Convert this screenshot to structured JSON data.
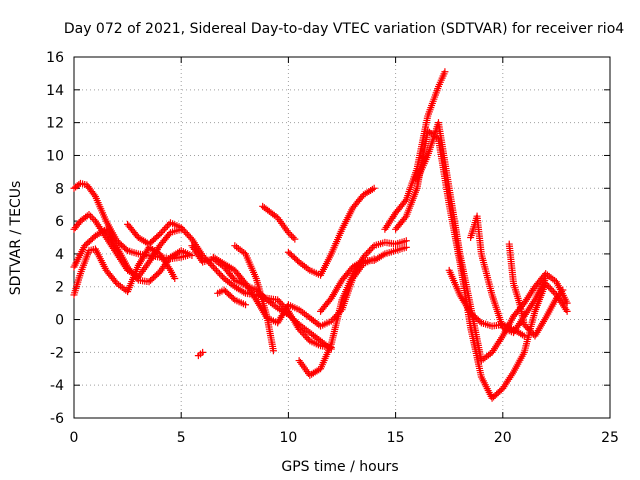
{
  "chart_data": {
    "type": "scatter",
    "title": "Day 072 of 2021, Sidereal Day-to-day VTEC variation (SDTVAR) for receiver rio4",
    "xlabel": "GPS time / hours",
    "ylabel": "SDTVAR / TECUs",
    "xlim": [
      0,
      25
    ],
    "ylim": [
      -6,
      16
    ],
    "xticks": [
      0,
      5,
      10,
      15,
      20,
      25
    ],
    "yticks": [
      -6,
      -4,
      -2,
      0,
      2,
      4,
      6,
      8,
      10,
      12,
      14,
      16
    ],
    "grid": true,
    "marker": "+",
    "color": "#ff0000",
    "series": [
      {
        "x": [
          0.0,
          0.3,
          0.6,
          1.0,
          1.5,
          2.0,
          2.5,
          3.0,
          3.5,
          4.0,
          4.5,
          5.0,
          5.3
        ],
        "y": [
          8.0,
          8.3,
          8.2,
          7.5,
          6.0,
          4.8,
          4.2,
          4.0,
          3.9,
          3.8,
          3.7,
          3.8,
          3.9
        ]
      },
      {
        "x": [
          0.0,
          0.3,
          0.7,
          1.0,
          1.5,
          2.0,
          2.5,
          3.0,
          3.5,
          4.0,
          4.5,
          5.0
        ],
        "y": [
          5.5,
          6.0,
          6.4,
          6.0,
          5.0,
          4.0,
          3.0,
          2.6,
          3.5,
          4.5,
          5.3,
          5.5
        ]
      },
      {
        "x": [
          0.0,
          0.5,
          1.0,
          1.5,
          2.0,
          2.5,
          3.0,
          3.5,
          4.0,
          4.5,
          5.0,
          5.5
        ],
        "y": [
          3.2,
          4.5,
          5.1,
          5.5,
          4.4,
          3.2,
          2.4,
          2.3,
          2.9,
          3.8,
          4.2,
          3.9
        ]
      },
      {
        "x": [
          0.0,
          0.3,
          0.7,
          1.0,
          1.5,
          2.0,
          2.5,
          3.0,
          3.5,
          4.0,
          4.5,
          4.7
        ],
        "y": [
          1.5,
          2.8,
          4.2,
          4.3,
          3.0,
          2.2,
          1.7,
          3.3,
          4.4,
          4.0,
          3.0,
          2.5
        ]
      },
      {
        "x": [
          2.5,
          3.0,
          3.5,
          4.0,
          4.5,
          5.0,
          5.5,
          6.0,
          6.5,
          7.0,
          7.5,
          8.0,
          8.5,
          9.0,
          9.5,
          10.0,
          10.5,
          11.0,
          11.5,
          12.0
        ],
        "y": [
          5.8,
          5.0,
          4.6,
          5.2,
          5.9,
          5.6,
          4.9,
          3.9,
          3.2,
          2.5,
          2.0,
          1.6,
          1.5,
          1.3,
          1.2,
          0.5,
          -0.6,
          -1.3,
          -1.6,
          -1.7
        ]
      },
      {
        "x": [
          5.5,
          6.0,
          6.5,
          7.0,
          7.5,
          8.0,
          8.5,
          9.0,
          9.5,
          10.0,
          10.5,
          11.0,
          11.5,
          12.0
        ],
        "y": [
          4.5,
          3.5,
          3.7,
          3.2,
          2.4,
          2.1,
          1.8,
          1.2,
          0.7,
          0.3,
          -0.3,
          -0.8,
          -1.3,
          -1.8
        ]
      },
      {
        "x": [
          6.5,
          7.0,
          7.5,
          8.0,
          8.5,
          9.0,
          9.5,
          10.0,
          10.5,
          11.0,
          11.5,
          12.0,
          12.5,
          13.0,
          13.5,
          14.0
        ],
        "y": [
          3.8,
          3.4,
          3.0,
          2.2,
          1.2,
          0.1,
          -0.2,
          0.9,
          0.6,
          0.1,
          -0.4,
          -0.1,
          0.6,
          2.5,
          3.4,
          3.7
        ]
      },
      {
        "x": [
          6.7,
          7.0,
          7.5,
          8.0
        ],
        "y": [
          1.6,
          1.8,
          1.2,
          0.9
        ]
      },
      {
        "x": [
          7.5,
          8.0,
          8.5,
          9.0,
          9.3
        ],
        "y": [
          4.5,
          4.0,
          2.5,
          0.2,
          -1.9
        ]
      },
      {
        "x": [
          5.8,
          6.0
        ],
        "y": [
          -2.2,
          -2.0
        ]
      },
      {
        "x": [
          8.8,
          9.5,
          10.0,
          10.3
        ],
        "y": [
          6.9,
          6.2,
          5.3,
          4.9
        ]
      },
      {
        "x": [
          10.0,
          10.5,
          11.0,
          11.5,
          12.0,
          12.5,
          13.0,
          13.5,
          14.0
        ],
        "y": [
          4.1,
          3.5,
          3.0,
          2.7,
          4.0,
          5.5,
          6.8,
          7.6,
          8.0
        ]
      },
      {
        "x": [
          10.5,
          11.0,
          11.5,
          12.0,
          12.5,
          13.0,
          13.5,
          14.0,
          14.5,
          15.0,
          15.5
        ],
        "y": [
          -2.5,
          -3.4,
          -3.0,
          -1.5,
          1.2,
          2.7,
          3.8,
          4.5,
          4.7,
          4.6,
          4.8
        ]
      },
      {
        "x": [
          11.5,
          12.0,
          12.5,
          13.0,
          13.5,
          14.0,
          14.5,
          15.0,
          15.5
        ],
        "y": [
          0.5,
          1.3,
          2.4,
          3.2,
          3.6,
          3.6,
          4.0,
          4.2,
          4.4
        ]
      },
      {
        "x": [
          14.5,
          15.0,
          15.5,
          16.0,
          16.5,
          17.0,
          17.3
        ],
        "y": [
          5.5,
          6.5,
          7.3,
          9.2,
          12.4,
          14.2,
          15.1
        ]
      },
      {
        "x": [
          15.0,
          15.5,
          16.0,
          16.5,
          17.0,
          17.5,
          18.0,
          18.5,
          19.0,
          19.5,
          20.0,
          20.5,
          21.0,
          21.5,
          22.0,
          22.5,
          23.0
        ],
        "y": [
          5.5,
          6.3,
          8.0,
          11.5,
          11.0,
          7.0,
          3.5,
          -0.5,
          -3.5,
          -4.8,
          -4.2,
          -3.2,
          -2.0,
          0.5,
          2.2,
          1.5,
          0.5
        ]
      },
      {
        "x": [
          16.0,
          16.5,
          17.0,
          17.5,
          18.0,
          18.5,
          19.0,
          19.5,
          20.0,
          20.5,
          21.0,
          21.5,
          22.0,
          22.5,
          23.0
        ],
        "y": [
          8.5,
          10.0,
          12.0,
          8.0,
          4.0,
          0.8,
          -2.5,
          -2.0,
          -1.0,
          0.2,
          1.0,
          2.0,
          2.8,
          2.3,
          1.0
        ]
      },
      {
        "x": [
          18.5,
          18.8,
          19.0,
          19.5,
          20.0,
          20.5,
          21.0,
          21.5,
          22.0
        ],
        "y": [
          5.0,
          6.3,
          4.0,
          1.5,
          -0.5,
          -0.8,
          0.2,
          1.2,
          2.5
        ]
      },
      {
        "x": [
          20.3,
          20.5,
          20.8,
          21.0,
          21.5,
          22.0,
          22.5,
          22.8
        ],
        "y": [
          4.6,
          2.2,
          0.9,
          -0.3,
          -1.0,
          0.1,
          1.3,
          1.8
        ]
      },
      {
        "x": [
          17.5,
          18.0,
          18.5,
          19.0,
          19.5,
          20.0,
          20.5,
          21.0
        ],
        "y": [
          3.0,
          1.5,
          0.4,
          -0.2,
          -0.4,
          -0.3,
          -0.6,
          -1.0
        ]
      }
    ]
  }
}
